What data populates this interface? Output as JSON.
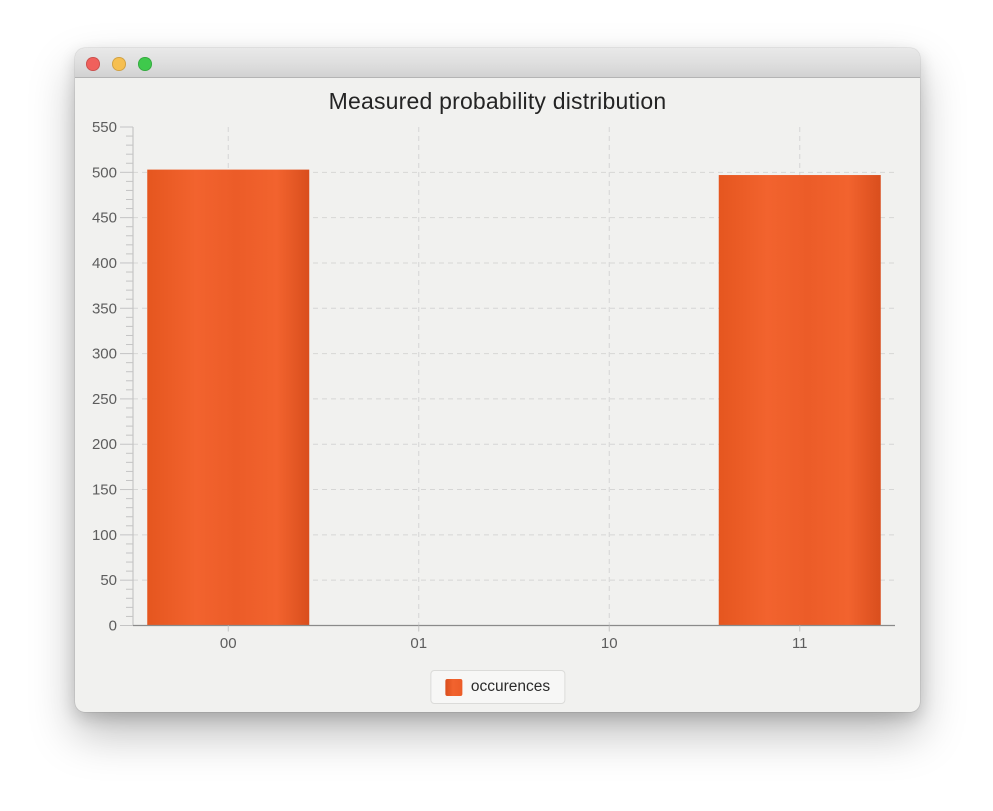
{
  "window": {
    "title": "",
    "controls": [
      {
        "name": "close",
        "color": "#f0605c"
      },
      {
        "name": "minimize",
        "color": "#f6bf50"
      },
      {
        "name": "zoom",
        "color": "#3fc94c"
      }
    ]
  },
  "chart_data": {
    "type": "bar",
    "title": "Measured probability distribution",
    "categories": [
      "00",
      "01",
      "10",
      "11"
    ],
    "series": [
      {
        "name": "occurences",
        "color": "#ec5c28",
        "color_dark": "#d94e1d",
        "color_light": "#f2632e",
        "values": [
          503,
          0,
          0,
          497
        ]
      }
    ],
    "xlabel": "",
    "ylabel": "",
    "ylim": [
      0,
      550
    ],
    "yticks": [
      0,
      50,
      100,
      150,
      200,
      250,
      300,
      350,
      400,
      450,
      500,
      550
    ],
    "ytick_step": 50,
    "ytick_minor_step": 10,
    "grid": "dashed",
    "legend_position": "bottom",
    "colors": {
      "grid": "#d6d6d5",
      "y_axis_line": "#bdbdbd",
      "x_axis_line": "#8a8a8a",
      "tick": "#c4c4c4",
      "tick_label": "#5d5d5d",
      "title_text": "#242424"
    }
  }
}
